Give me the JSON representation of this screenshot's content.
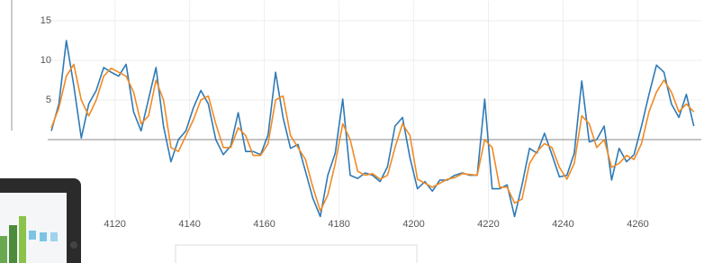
{
  "chart_data": {
    "type": "line",
    "x": [
      4103,
      4105,
      4107,
      4109,
      4111,
      4113,
      4115,
      4117,
      4119,
      4121,
      4123,
      4125,
      4127,
      4129,
      4131,
      4133,
      4135,
      4137,
      4139,
      4141,
      4143,
      4145,
      4147,
      4149,
      4151,
      4153,
      4155,
      4157,
      4159,
      4161,
      4163,
      4165,
      4167,
      4169,
      4171,
      4173,
      4175,
      4177,
      4179,
      4181,
      4183,
      4185,
      4187,
      4189,
      4191,
      4193,
      4195,
      4197,
      4199,
      4201,
      4203,
      4205,
      4207,
      4209,
      4211,
      4213,
      4215,
      4217,
      4219,
      4221,
      4223,
      4225,
      4227,
      4229,
      4231,
      4233,
      4235,
      4237,
      4239,
      4241,
      4243,
      4245,
      4247,
      4249,
      4251,
      4253,
      4255,
      4257,
      4259,
      4261,
      4263,
      4265,
      4267,
      4269,
      4271,
      4273,
      4275
    ],
    "series": [
      {
        "color": "#2f7ab5",
        "values": [
          1.1,
          4.5,
          12.5,
          6.8,
          0.2,
          4.5,
          6.2,
          9.1,
          8.5,
          8,
          9.5,
          3.5,
          1.1,
          5.1,
          9.1,
          1.7,
          -2.8,
          0,
          1.1,
          4,
          6.2,
          4.5,
          0,
          -1.9,
          -0.8,
          3.4,
          -1.5,
          -1.5,
          -1.9,
          0.6,
          8.5,
          2.8,
          -1.1,
          -0.6,
          -4,
          -7.4,
          -9.7,
          -4.5,
          -1.7,
          5.1,
          -4.5,
          -4.9,
          -4.2,
          -4.5,
          -5.3,
          -3.4,
          1.7,
          2.8,
          -2.3,
          -6.2,
          -5.3,
          -6.5,
          -5.1,
          -5.1,
          -4.5,
          -4.2,
          -4.5,
          -4.5,
          5.1,
          -6.2,
          -6.2,
          -5.7,
          -9.7,
          -5.7,
          -1.1,
          -1.7,
          0.8,
          -1.9,
          -4.7,
          -4.5,
          -1.7,
          7.4,
          -0.3,
          0,
          1.7,
          -5.1,
          -1.1,
          -2.8,
          -1.9,
          1.7,
          5.7,
          9.4,
          8.5,
          4.5,
          2.8,
          5.7,
          1.7
        ]
      },
      {
        "color": "#f08a24",
        "values": [
          1.5,
          4,
          8,
          9.5,
          5,
          3,
          5,
          8,
          9,
          8.5,
          8,
          6,
          2,
          3,
          7.5,
          5,
          -1,
          -1.5,
          0.5,
          2.5,
          5,
          5.5,
          2,
          -1,
          -1,
          1.5,
          0.5,
          -2,
          -2,
          -0.5,
          5,
          5.5,
          0.5,
          -1,
          -2.5,
          -6,
          -9,
          -7,
          -3,
          2,
          0,
          -4,
          -4.5,
          -4.3,
          -5,
          -4.5,
          -1,
          2,
          0.5,
          -5,
          -5.5,
          -6,
          -5.5,
          -5,
          -4.8,
          -4.3,
          -4.4,
          -4.5,
          0,
          -1,
          -6,
          -6,
          -8,
          -7.5,
          -3,
          -1.5,
          -0.5,
          -1,
          -3.5,
          -5,
          -3,
          3,
          2,
          -1,
          0,
          -3.5,
          -3,
          -2,
          -2.5,
          -0.5,
          3.5,
          6,
          7.5,
          6,
          3.5,
          4.5,
          3.5
        ]
      }
    ],
    "xlim": [
      4102,
      4277
    ],
    "xticks": [
      4120,
      4140,
      4160,
      4180,
      4200,
      4220,
      4240,
      4260
    ],
    "ylim": [
      -10,
      17.5
    ],
    "yticks": [
      5,
      10,
      15
    ],
    "grid": true
  }
}
